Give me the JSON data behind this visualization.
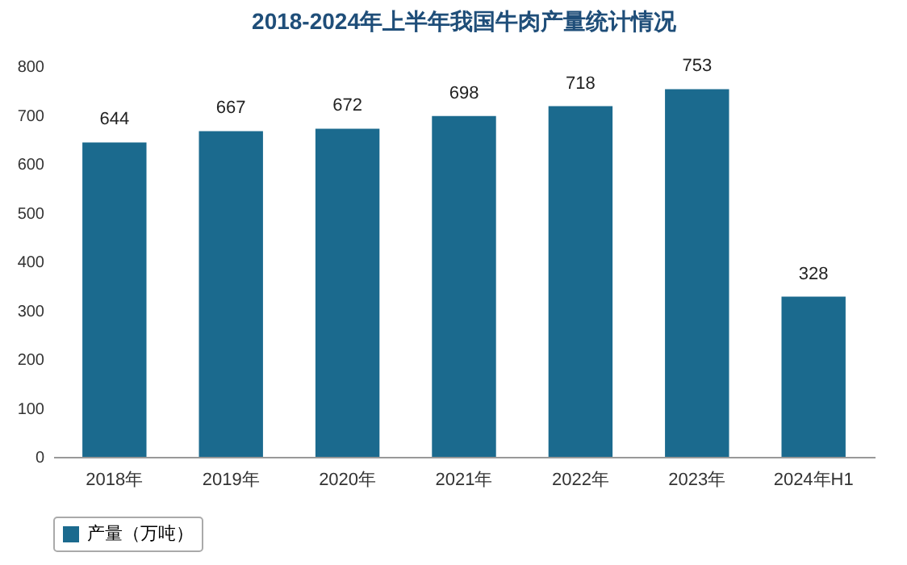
{
  "chart_data": {
    "type": "bar",
    "title": "2018-2024年上半年我国牛肉产量统计情况",
    "categories": [
      "2018年",
      "2019年",
      "2020年",
      "2021年",
      "2022年",
      "2023年",
      "2024年H1"
    ],
    "series": [
      {
        "name": "产量（万吨）",
        "color": "#1b6a8e",
        "values": [
          644,
          667,
          672,
          698,
          718,
          753,
          328
        ]
      }
    ],
    "ylim": [
      0,
      800
    ],
    "yticks": [
      0,
      100,
      200,
      300,
      400,
      500,
      600,
      700,
      800
    ],
    "data_labels": true,
    "legend": "bottom",
    "grid": false
  }
}
